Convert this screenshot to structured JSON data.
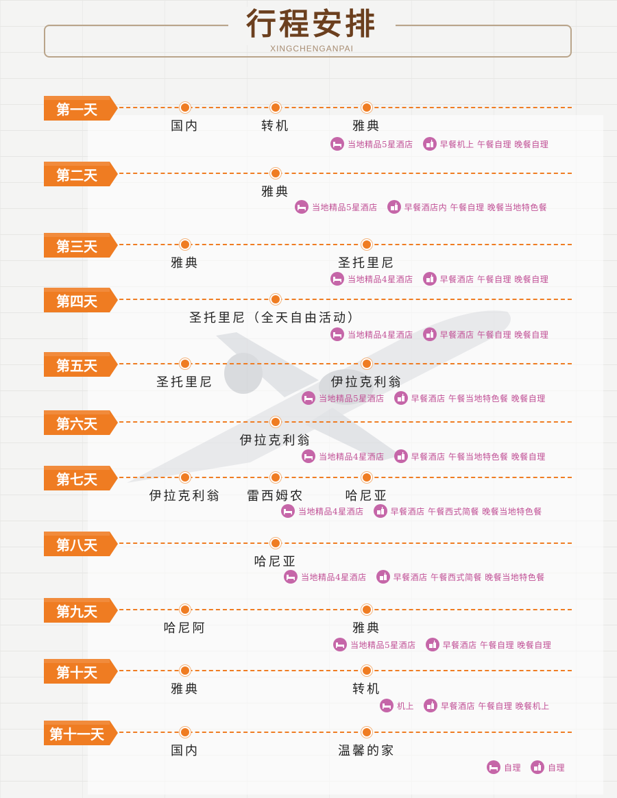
{
  "header": {
    "title": "行程安排",
    "subtitle": "XINGCHENGANPAI"
  },
  "days": [
    {
      "label": "第一天",
      "stops": [
        "国内",
        "转机",
        "雅典"
      ],
      "hotel": "当地精品5星酒店",
      "meals": "早餐机上 午餐自理 晚餐自理"
    },
    {
      "label": "第二天",
      "stops": [
        "雅典"
      ],
      "hotel": "当地精品5星酒店",
      "meals": "早餐酒店内 午餐自理 晚餐当地特色餐"
    },
    {
      "label": "第三天",
      "stops": [
        "雅典",
        "圣托里尼"
      ],
      "hotel": "当地精品4星酒店",
      "meals": "早餐酒店 午餐自理 晚餐自理"
    },
    {
      "label": "第四天",
      "stops": [
        "圣托里尼（全天自由活动）"
      ],
      "hotel": "当地精品4星酒店",
      "meals": "早餐酒店 午餐自理 晚餐自理"
    },
    {
      "label": "第五天",
      "stops": [
        "圣托里尼",
        "伊拉克利翁"
      ],
      "hotel": "当地精品5星酒店",
      "meals": "早餐酒店 午餐当地特色餐 晚餐自理"
    },
    {
      "label": "第六天",
      "stops": [
        "伊拉克利翁"
      ],
      "hotel": "当地精品4星酒店",
      "meals": "早餐酒店 午餐当地特色餐 晚餐自理"
    },
    {
      "label": "第七天",
      "stops": [
        "伊拉克利翁",
        "雷西姆农",
        "哈尼亚"
      ],
      "hotel": "当地精品4星酒店",
      "meals": "早餐酒店 午餐西式简餐 晚餐当地特色餐"
    },
    {
      "label": "第八天",
      "stops": [
        "哈尼亚"
      ],
      "hotel": "当地精品4星酒店",
      "meals": "早餐酒店 午餐西式简餐 晚餐当地特色餐"
    },
    {
      "label": "第九天",
      "stops": [
        "哈尼阿",
        "雅典"
      ],
      "hotel": "当地精品5星酒店",
      "meals": "早餐酒店 午餐自理 晚餐自理"
    },
    {
      "label": "第十天",
      "stops": [
        "雅典",
        "转机"
      ],
      "hotel": "机上",
      "meals": "早餐酒店 午餐自理 晚餐机上"
    },
    {
      "label": "第十一天",
      "stops": [
        "国内",
        "温馨的家"
      ],
      "hotel": "自理",
      "meals": "自理"
    }
  ],
  "colors": {
    "accent": "#ef7c22",
    "info": "#c04f95",
    "title": "#6b3f1e"
  },
  "icons": {
    "hotel": "bed-icon",
    "meal": "meal-icon"
  }
}
